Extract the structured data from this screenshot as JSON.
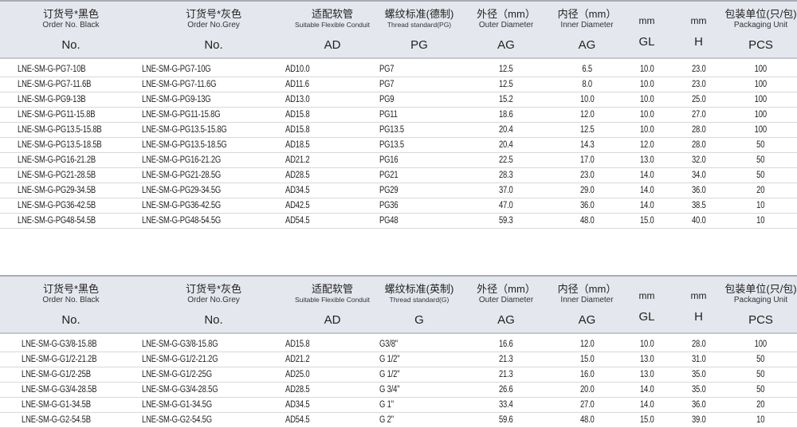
{
  "table1": {
    "headers": [
      {
        "cn": "订货号*黑色",
        "en": "Order No. Black",
        "abbr": "No."
      },
      {
        "cn": "订货号*灰色",
        "en": "Order No.Grey",
        "abbr": "No."
      },
      {
        "cn": "适配软管",
        "en": "Suitable Flexible Conduit",
        "abbr": "AD"
      },
      {
        "cn": "螺纹标准(德制)",
        "en": "Thread standard(PG)",
        "abbr": "PG"
      },
      {
        "cn": "外径（mm）",
        "en": "Outer Diameter",
        "abbr": "AG"
      },
      {
        "cn": "内径（mm）",
        "en": "Inner Diameter",
        "abbr": "AG"
      },
      {
        "cn": "mm",
        "en": "",
        "abbr": "GL"
      },
      {
        "cn": "mm",
        "en": "",
        "abbr": "H"
      },
      {
        "cn": "包装单位(只/包)",
        "en": "Packaging Unit",
        "abbr": "PCS"
      }
    ],
    "rows": [
      [
        "LNE-SM-G-PG7-10B",
        "LNE-SM-G-PG7-10G",
        "AD10.0",
        "PG7",
        "12.5",
        "6.5",
        "10.0",
        "23.0",
        "100"
      ],
      [
        "LNE-SM-G-PG7-11.6B",
        "LNE-SM-G-PG7-11.6G",
        "AD11.6",
        "PG7",
        "12.5",
        "8.0",
        "10.0",
        "23.0",
        "100"
      ],
      [
        "LNE-SM-G-PG9-13B",
        "LNE-SM-G-PG9-13G",
        "AD13.0",
        "PG9",
        "15.2",
        "10.0",
        "10.0",
        "25.0",
        "100"
      ],
      [
        "LNE-SM-G-PG11-15.8B",
        "LNE-SM-G-PG11-15.8G",
        "AD15.8",
        "PG11",
        "18.6",
        "12.0",
        "10.0",
        "27.0",
        "100"
      ],
      [
        "LNE-SM-G-PG13.5-15.8B",
        "LNE-SM-G-PG13.5-15.8G",
        "AD15.8",
        "PG13.5",
        "20.4",
        "12.5",
        "10.0",
        "28.0",
        "100"
      ],
      [
        "LNE-SM-G-PG13.5-18.5B",
        "LNE-SM-G-PG13.5-18.5G",
        "AD18.5",
        "PG13.5",
        "20.4",
        "14.3",
        "12.0",
        "28.0",
        "50"
      ],
      [
        "LNE-SM-G-PG16-21.2B",
        "LNE-SM-G-PG16-21.2G",
        "AD21.2",
        "PG16",
        "22.5",
        "17.0",
        "13.0",
        "32.0",
        "50"
      ],
      [
        "LNE-SM-G-PG21-28.5B",
        "LNE-SM-G-PG21-28.5G",
        "AD28.5",
        "PG21",
        "28.3",
        "23.0",
        "14.0",
        "34.0",
        "50"
      ],
      [
        "LNE-SM-G-PG29-34.5B",
        "LNE-SM-G-PG29-34.5G",
        "AD34.5",
        "PG29",
        "37.0",
        "29.0",
        "14.0",
        "36.0",
        "20"
      ],
      [
        "LNE-SM-G-PG36-42.5B",
        "LNE-SM-G-PG36-42.5G",
        "AD42.5",
        "PG36",
        "47.0",
        "36.0",
        "14.0",
        "38.5",
        "10"
      ],
      [
        "LNE-SM-G-PG48-54.5B",
        "LNE-SM-G-PG48-54.5G",
        "AD54.5",
        "PG48",
        "59.3",
        "48.0",
        "15.0",
        "40.0",
        "10"
      ]
    ]
  },
  "table2": {
    "headers": [
      {
        "cn": "订货号*黑色",
        "en": "Order No. Black",
        "abbr": "No."
      },
      {
        "cn": "订货号*灰色",
        "en": "Order No.Grey",
        "abbr": "No."
      },
      {
        "cn": "适配软管",
        "en": "Suitable Flexible Conduit",
        "abbr": "AD"
      },
      {
        "cn": "螺纹标准(英制)",
        "en": "Thread standard(G)",
        "abbr": "G"
      },
      {
        "cn": "外径（mm）",
        "en": "Outer Diameter",
        "abbr": "AG"
      },
      {
        "cn": "内径（mm）",
        "en": "Inner Diameter",
        "abbr": "AG"
      },
      {
        "cn": "mm",
        "en": "",
        "abbr": "GL"
      },
      {
        "cn": "mm",
        "en": "",
        "abbr": "H"
      },
      {
        "cn": "包装单位(只/包)",
        "en": "Packaging Unit",
        "abbr": "PCS"
      }
    ],
    "rows": [
      [
        "LNE-SM-G-G3/8-15.8B",
        "LNE-SM-G-G3/8-15.8G",
        "AD15.8",
        "G3/8\"",
        "16.6",
        "12.0",
        "10.0",
        "28.0",
        "100"
      ],
      [
        "LNE-SM-G-G1/2-21.2B",
        "LNE-SM-G-G1/2-21.2G",
        "AD21.2",
        "G 1/2\"",
        "21.3",
        "15.0",
        "13.0",
        "31.0",
        "50"
      ],
      [
        "LNE-SM-G-G1/2-25B",
        "LNE-SM-G-G1/2-25G",
        "AD25.0",
        "G 1/2\"",
        "21.3",
        "16.0",
        "13.0",
        "35.0",
        "50"
      ],
      [
        "LNE-SM-G-G3/4-28.5B",
        "LNE-SM-G-G3/4-28.5G",
        "AD28.5",
        "G 3/4\"",
        "26.6",
        "20.0",
        "14.0",
        "35.0",
        "50"
      ],
      [
        "LNE-SM-G-G1-34.5B",
        "LNE-SM-G-G1-34.5G",
        "AD34.5",
        "G 1\"",
        "33.4",
        "27.0",
        "14.0",
        "36.0",
        "20"
      ],
      [
        "LNE-SM-G-G2-54.5B",
        "LNE-SM-G-G2-54.5G",
        "AD54.5",
        "G 2\"",
        "59.6",
        "48.0",
        "15.0",
        "39.0",
        "10"
      ]
    ]
  }
}
